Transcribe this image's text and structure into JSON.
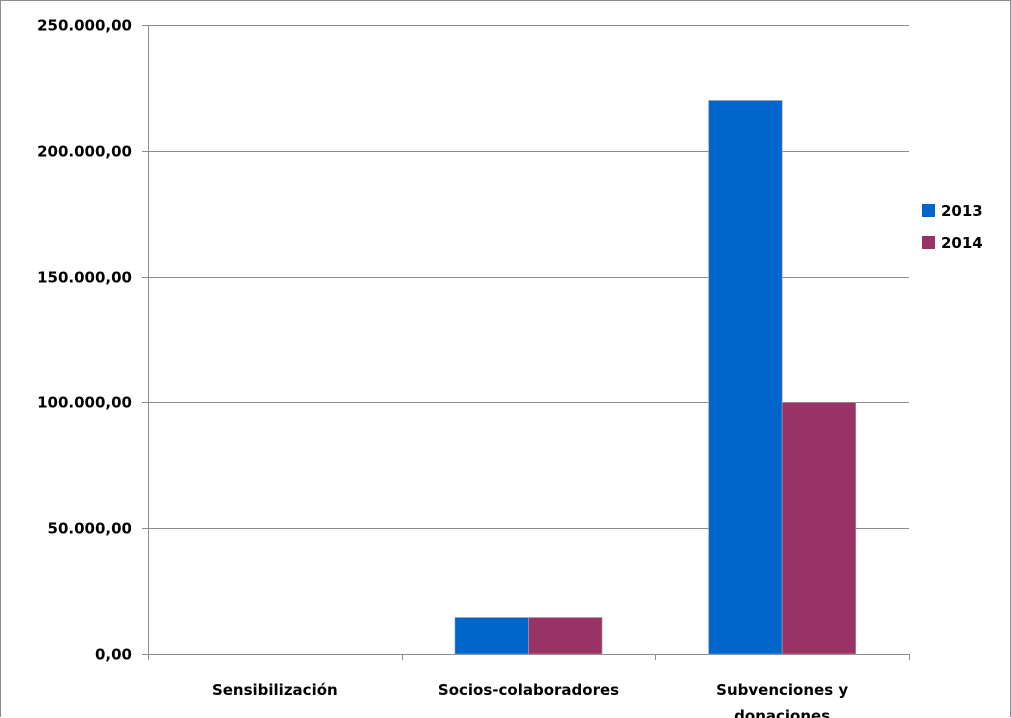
{
  "chart_data": {
    "type": "bar",
    "title": "",
    "xlabel": "",
    "ylabel": "",
    "categories": [
      [
        "Sensibilización"
      ],
      [
        "Socios-colaboradores"
      ],
      [
        "Subvenciones y",
        "donaciones"
      ]
    ],
    "series": [
      {
        "name": "2013",
        "color": "#0066cc",
        "values": [
          0,
          14500,
          220000
        ]
      },
      {
        "name": "2014",
        "color": "#993366",
        "values": [
          0,
          14500,
          100000
        ]
      }
    ],
    "ylim": [
      0,
      250000
    ],
    "yticks": [
      0,
      50000,
      100000,
      150000,
      200000,
      250000
    ],
    "ytick_labels": [
      "0,00",
      "50.000,00",
      "100.000,00",
      "150.000,00",
      "200.000,00",
      "250.000,00"
    ],
    "grid": true,
    "gridline_color": "#8c8c8c",
    "legend_position": "right"
  }
}
